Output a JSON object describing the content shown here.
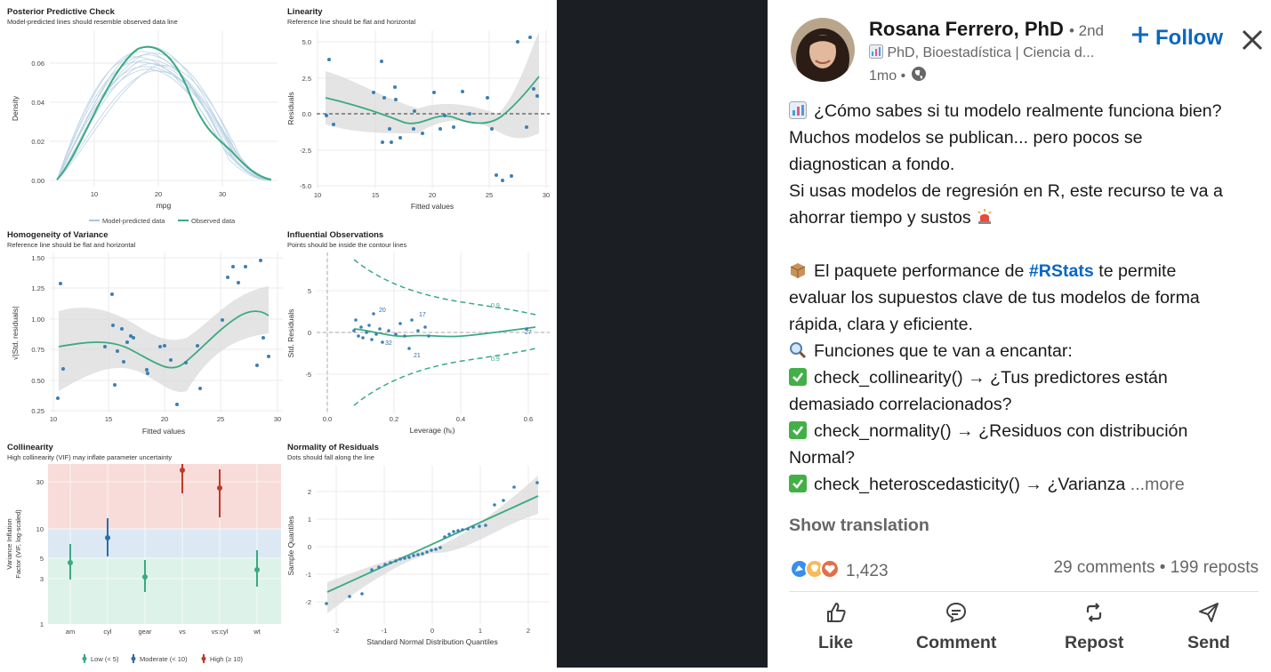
{
  "figure": {
    "ppc": {
      "title": "Posterior Predictive Check",
      "subtitle": "Model-predicted lines should resemble observed data line",
      "ylabel": "Density",
      "xlabel": "mpg",
      "yticks": [
        "0.06",
        "0.04",
        "0.02",
        "0.00"
      ],
      "xticks": [
        "10",
        "20",
        "30"
      ],
      "legend_model": "Model-predicted data",
      "legend_observed": "Observed data"
    },
    "linearity": {
      "title": "Linearity",
      "subtitle": "Reference line should be flat and horizontal",
      "ylabel": "Residuals",
      "xlabel": "Fitted values",
      "yticks": [
        "5.0",
        "2.5",
        "0.0",
        "-2.5",
        "-5.0"
      ],
      "xticks": [
        "10",
        "15",
        "20",
        "25",
        "30"
      ]
    },
    "homogeneity": {
      "title": "Homogeneity of Variance",
      "subtitle": "Reference line should be flat and horizontal",
      "ylabel": "√|Std. residuals|",
      "xlabel": "Fitted values",
      "yticks": [
        "1.50",
        "1.25",
        "1.00",
        "0.75",
        "0.50",
        "0.25"
      ],
      "xticks": [
        "10",
        "15",
        "20",
        "25",
        "30"
      ]
    },
    "influential": {
      "title": "Influential Observations",
      "subtitle": "Points should be inside the contour lines",
      "ylabel": "Std. Residuals",
      "xlabel": "Leverage (hᵢᵢ)",
      "yticks": [
        "5",
        "0",
        "-5"
      ],
      "xticks": [
        "0.0",
        "0.2",
        "0.4",
        "0.6"
      ],
      "contour_upper": "0.9",
      "contour_lower": "0.9",
      "point_labels": [
        "20",
        "17",
        "32",
        "21",
        "27"
      ]
    },
    "collinearity": {
      "title": "Collinearity",
      "subtitle": "High collinearity (VIF) may inflate parameter uncertainty",
      "ylabel_line1": "Variance Inflation",
      "ylabel_line2": "Factor (VIF, log-scaled)",
      "yticks": [
        "30",
        "10",
        "5",
        "3",
        "1"
      ],
      "categories": [
        "am",
        "cyl",
        "gear",
        "vs",
        "vs:cyl",
        "wt"
      ],
      "legend_low": "Low (< 5)",
      "legend_moderate": "Moderate (< 10)",
      "legend_high": "High (≥ 10)"
    },
    "normality": {
      "title": "Normality of Residuals",
      "subtitle": "Dots should fall along the line",
      "ylabel": "Sample Quantiles",
      "xlabel": "Standard Normal Distribution Quantiles",
      "yticks": [
        "2",
        "1",
        "0",
        "-1",
        "-2"
      ],
      "xticks": [
        "-2",
        "-1",
        "0",
        "1",
        "2"
      ]
    }
  },
  "post": {
    "author": "Rosana Ferrero, PhD",
    "degree": "• 2nd",
    "headline": "PhD, Bioestadística | Ciencia d...",
    "time": "1mo •",
    "follow": "Follow",
    "lines": [
      "¿Cómo sabes si tu modelo realmente funciona bien?",
      "Muchos modelos se publican... pero pocos se",
      "diagnostican a fondo.",
      "Si usas modelos de regresión en R, este recurso te va a",
      "ahorrar tiempo y sustos",
      "El paquete performance de",
      "#RStats",
      "te permite",
      "evaluar los supuestos clave de tus modelos de forma",
      "rápida, clara y eficiente.",
      "Funciones que te van a encantar:",
      "check_collinearity() → ¿Tus predictores están",
      "demasiado correlacionados?",
      "check_normality() → ¿Residuos con distribución",
      "Normal?",
      "check_heteroscedasticity() → ¿Varianza"
    ],
    "more": "...more",
    "show_translation": "Show translation",
    "reaction_count": "1,423",
    "stats": "29 comments • 199 reposts",
    "actions": [
      "Like",
      "Comment",
      "Repost",
      "Send"
    ]
  },
  "colors": {
    "accent_blue": "#0a66c2",
    "observed_green": "#3aaa80",
    "model_blue": "#8fb3d3",
    "point_blue": "#3b7fb5",
    "vif_low": "#3aaa80",
    "vif_moderate": "#2c6ea8",
    "vif_high": "#c0392b"
  }
}
